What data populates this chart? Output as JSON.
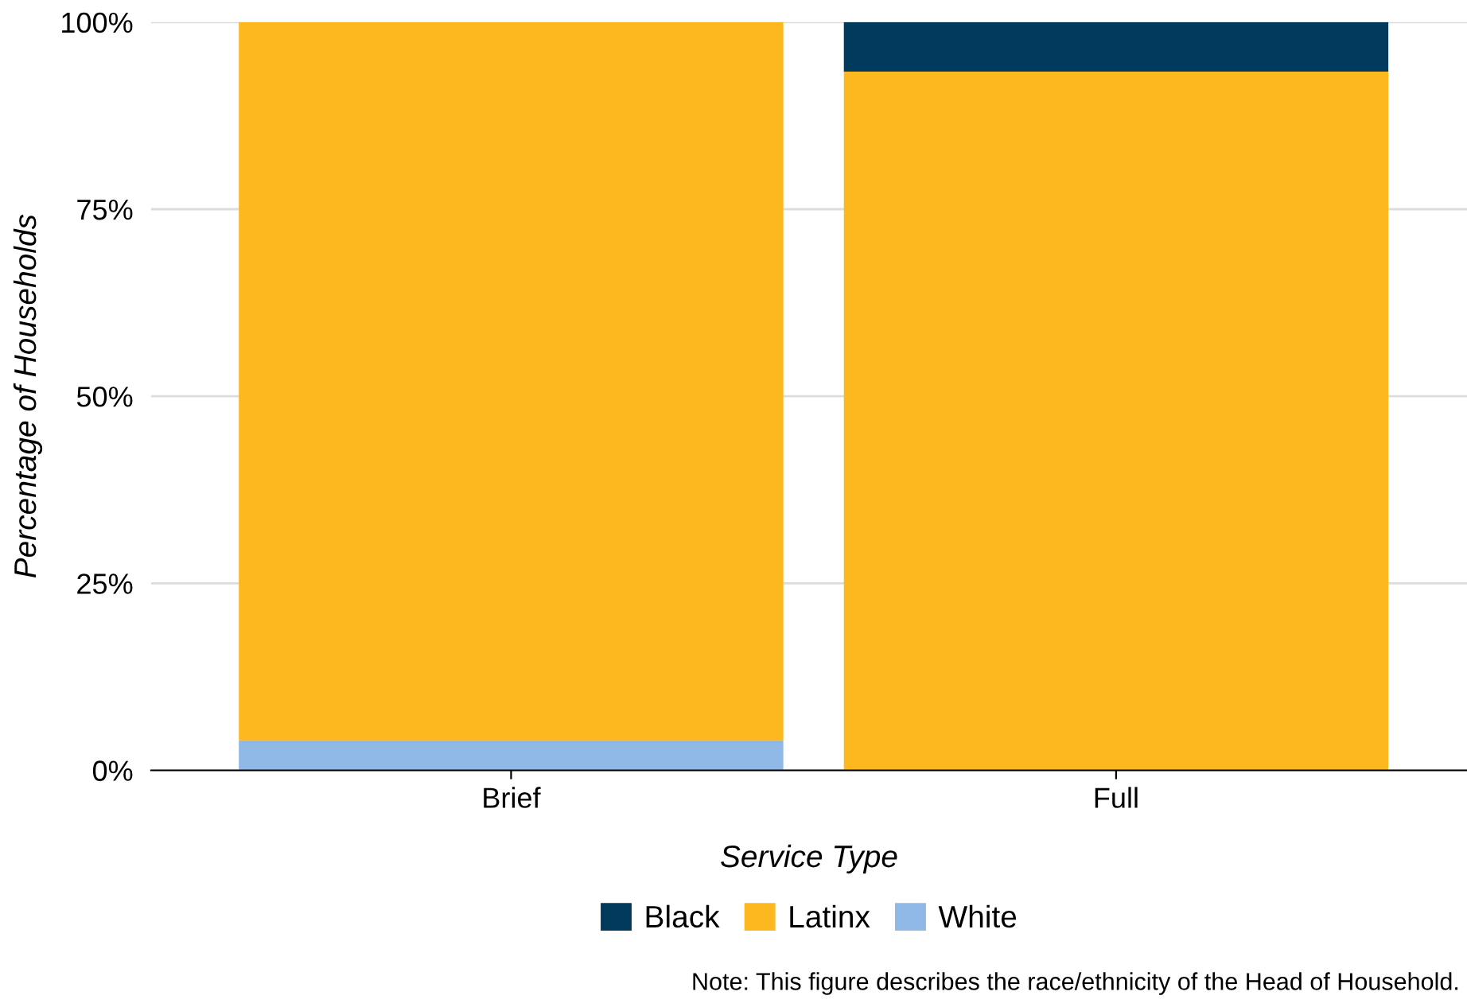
{
  "chart_data": {
    "type": "bar",
    "stacked": true,
    "xlabel": "Service Type",
    "ylabel": "Percentage of Households",
    "categories": [
      "Brief",
      "Full"
    ],
    "series": [
      {
        "name": "White",
        "color": "#8fb8e6",
        "values": [
          4.0,
          0
        ]
      },
      {
        "name": "Latinx",
        "color": "#fdb71f",
        "values": [
          96.0,
          93.4
        ]
      },
      {
        "name": "Black",
        "color": "#003a5d",
        "values": [
          0,
          6.6
        ]
      }
    ],
    "ylim": [
      0,
      100
    ],
    "yticks": [
      {
        "value": 0,
        "label": "0%"
      },
      {
        "value": 25,
        "label": "25%"
      },
      {
        "value": 50,
        "label": "50%"
      },
      {
        "value": 75,
        "label": "75%"
      },
      {
        "value": 100,
        "label": "100%"
      }
    ],
    "grid": "y",
    "legend": "bottom",
    "annotations": [
      "Note: This figure describes the race/ethnicity of the Head of Household."
    ]
  }
}
